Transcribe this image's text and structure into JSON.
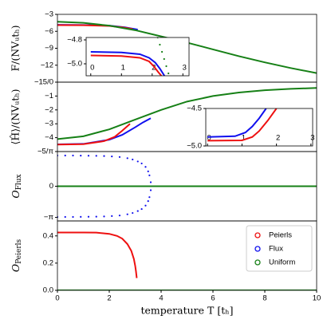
{
  "chart_data": [
    {
      "type": "line",
      "ylabel": "F/(NVᵤtₕ)",
      "xlim": [
        0,
        10
      ],
      "ylim": [
        -15,
        -3
      ],
      "yticks": [
        {
          "value": -3,
          "label": "−3"
        },
        {
          "value": -6,
          "label": "−6"
        },
        {
          "value": -9,
          "label": "−9"
        },
        {
          "value": -12,
          "label": "−12"
        },
        {
          "value": -15,
          "label": "−15/0"
        }
      ],
      "series": [
        {
          "color": "#1010ee",
          "style": "solid",
          "x": [
            0,
            1,
            2,
            2.6,
            3.1
          ],
          "values": [
            -4.85,
            -4.88,
            -5.0,
            -5.3,
            -5.7
          ]
        },
        {
          "color": "#ee1010",
          "style": "solid",
          "x": [
            0,
            1,
            2,
            2.5,
            2.9
          ],
          "values": [
            -4.9,
            -4.93,
            -5.05,
            -5.3,
            -5.6
          ]
        },
        {
          "color": "#168016",
          "style": "solid",
          "x": [
            0,
            1,
            2,
            3,
            4,
            5,
            6,
            7,
            8,
            9,
            10
          ],
          "values": [
            -4.3,
            -4.5,
            -5.0,
            -5.8,
            -6.9,
            -8.0,
            -9.2,
            -10.4,
            -11.5,
            -12.5,
            -13.4
          ]
        }
      ]
    },
    {
      "type": "line",
      "ylabel": "⟨Ĥ⟩/(NVᵤtₕ)",
      "xlim": [
        0,
        10
      ],
      "ylim": [
        -5,
        0
      ],
      "yticks": [
        {
          "value": -1,
          "label": "−1"
        },
        {
          "value": -2,
          "label": "−2"
        },
        {
          "value": -3,
          "label": "−3"
        },
        {
          "value": -4,
          "label": "−4"
        },
        {
          "value": -5,
          "label": "−5/π"
        }
      ],
      "series": [
        {
          "color": "#1010ee",
          "style": "solid",
          "x": [
            0,
            1,
            2,
            2.5,
            3,
            3.3,
            3.6
          ],
          "values": [
            -4.48,
            -4.45,
            -4.15,
            -3.8,
            -3.25,
            -2.9,
            -2.6
          ]
        },
        {
          "color": "#ee1010",
          "style": "solid",
          "x": [
            0,
            1,
            1.8,
            2.2,
            2.5,
            2.8
          ],
          "values": [
            -4.5,
            -4.47,
            -4.25,
            -3.95,
            -3.5,
            -3.0
          ]
        },
        {
          "color": "#168016",
          "style": "solid",
          "x": [
            0,
            1,
            2,
            3,
            4,
            5,
            6,
            7,
            8,
            9,
            10
          ],
          "values": [
            -4.1,
            -3.9,
            -3.4,
            -2.7,
            -2.0,
            -1.4,
            -1.0,
            -0.75,
            -0.58,
            -0.48,
            -0.42
          ]
        }
      ]
    },
    {
      "type": "line",
      "ylabel": {
        "main": "O",
        "sub": "Flux"
      },
      "xlim": [
        0,
        10
      ],
      "ylim": [
        -3.5,
        3.5
      ],
      "yticks": [
        0,
        {
          "value": -3.14159,
          "label": "−π"
        }
      ],
      "series": [
        {
          "color": "#1010ee",
          "style": "dots",
          "x": [
            0,
            0.3,
            0.6,
            0.9,
            1.2,
            1.5,
            1.8,
            2.1,
            2.4,
            2.7,
            2.9,
            3.1,
            3.25,
            3.4,
            3.5,
            3.55,
            3.6
          ],
          "values": [
            3.1,
            3.1,
            3.1,
            3.09,
            3.08,
            3.07,
            3.05,
            3.01,
            2.95,
            2.83,
            2.7,
            2.5,
            2.3,
            1.95,
            1.5,
            1.1,
            0.4
          ]
        },
        {
          "color": "#1010ee",
          "style": "dots",
          "x": [
            0,
            0.3,
            0.6,
            0.9,
            1.2,
            1.5,
            1.8,
            2.1,
            2.4,
            2.7,
            2.9,
            3.1,
            3.25,
            3.4,
            3.5,
            3.55,
            3.6
          ],
          "values": [
            -3.1,
            -3.1,
            -3.1,
            -3.09,
            -3.08,
            -3.07,
            -3.05,
            -3.01,
            -2.95,
            -2.83,
            -2.7,
            -2.5,
            -2.3,
            -1.95,
            -1.5,
            -1.1,
            -0.4
          ]
        },
        {
          "color": "#168016",
          "style": "solid",
          "x": [
            0,
            10
          ],
          "values": [
            0,
            0
          ]
        }
      ]
    },
    {
      "type": "line",
      "ylabel": {
        "main": "O",
        "sub": "Peierls"
      },
      "xlabel": "temperature T [tₕ]",
      "xlim": [
        0,
        10
      ],
      "ylim": [
        0,
        0.51
      ],
      "xticks": [
        0,
        2,
        4,
        6,
        8,
        10
      ],
      "yticks": [
        {
          "value": 0,
          "label": "0.0"
        },
        {
          "value": 0.2,
          "label": "0.2"
        },
        {
          "value": 0.4,
          "label": "0.4"
        }
      ],
      "legend": {
        "loc": "upper right",
        "entries": [
          {
            "name": "Peierls",
            "color": "#ee1010"
          },
          {
            "name": "Flux",
            "color": "#1010ee"
          },
          {
            "name": "Uniform",
            "color": "#168016"
          }
        ]
      },
      "series": [
        {
          "color": "#ee1010",
          "style": "solid",
          "x": [
            0,
            0.5,
            1,
            1.5,
            2,
            2.3,
            2.5,
            2.7,
            2.85,
            2.95,
            3.0,
            3.03,
            3.06
          ],
          "values": [
            0.425,
            0.425,
            0.425,
            0.424,
            0.415,
            0.4,
            0.38,
            0.34,
            0.29,
            0.23,
            0.18,
            0.14,
            0.09
          ]
        },
        {
          "color": "#168016",
          "style": "solid",
          "x": [
            0,
            10
          ],
          "values": [
            0,
            0
          ]
        }
      ]
    },
    {
      "type": "line",
      "inset": true,
      "xlim": [
        -0.15,
        3.2
      ],
      "ylim": [
        -5.1,
        -4.78
      ],
      "xticks": [
        0,
        1,
        2,
        3
      ],
      "yticks": [
        {
          "value": -4.8,
          "label": "−4.8"
        },
        {
          "value": -5.0,
          "label": "−5.0"
        }
      ],
      "series": [
        {
          "color": "#1010ee",
          "style": "solid",
          "x": [
            0,
            1,
            1.6,
            1.9,
            2.1,
            2.25,
            2.4
          ],
          "values": [
            -4.9,
            -4.905,
            -4.92,
            -4.95,
            -4.99,
            -5.04,
            -5.1
          ]
        },
        {
          "color": "#ee1010",
          "style": "solid",
          "x": [
            0,
            1,
            1.6,
            1.9,
            2.05,
            2.2,
            2.3
          ],
          "values": [
            -4.93,
            -4.935,
            -4.95,
            -4.98,
            -5.02,
            -5.07,
            -5.1
          ]
        },
        {
          "color": "#168016",
          "style": "dots",
          "x": [
            2.18,
            2.25,
            2.32,
            2.39,
            2.46,
            2.53
          ],
          "values": [
            -4.78,
            -4.84,
            -4.9,
            -4.96,
            -5.02,
            -5.08
          ]
        }
      ]
    },
    {
      "type": "line",
      "inset": true,
      "xlim": [
        -0.05,
        3.05
      ],
      "ylim": [
        -5.0,
        -4.5
      ],
      "xticks": [
        0,
        1,
        2,
        3
      ],
      "yticks": [
        {
          "value": -4.5,
          "label": "−4.5"
        },
        {
          "value": -5.0,
          "label": "−5.0"
        }
      ],
      "series": [
        {
          "color": "#1010ee",
          "style": "solid",
          "x": [
            0,
            0.8,
            1.1,
            1.3,
            1.5,
            1.7
          ],
          "values": [
            -4.88,
            -4.87,
            -4.82,
            -4.74,
            -4.63,
            -4.5
          ]
        },
        {
          "color": "#ee1010",
          "style": "solid",
          "x": [
            0,
            1,
            1.3,
            1.5,
            1.75,
            2.0
          ],
          "values": [
            -4.93,
            -4.925,
            -4.88,
            -4.8,
            -4.66,
            -4.5
          ]
        }
      ]
    }
  ]
}
